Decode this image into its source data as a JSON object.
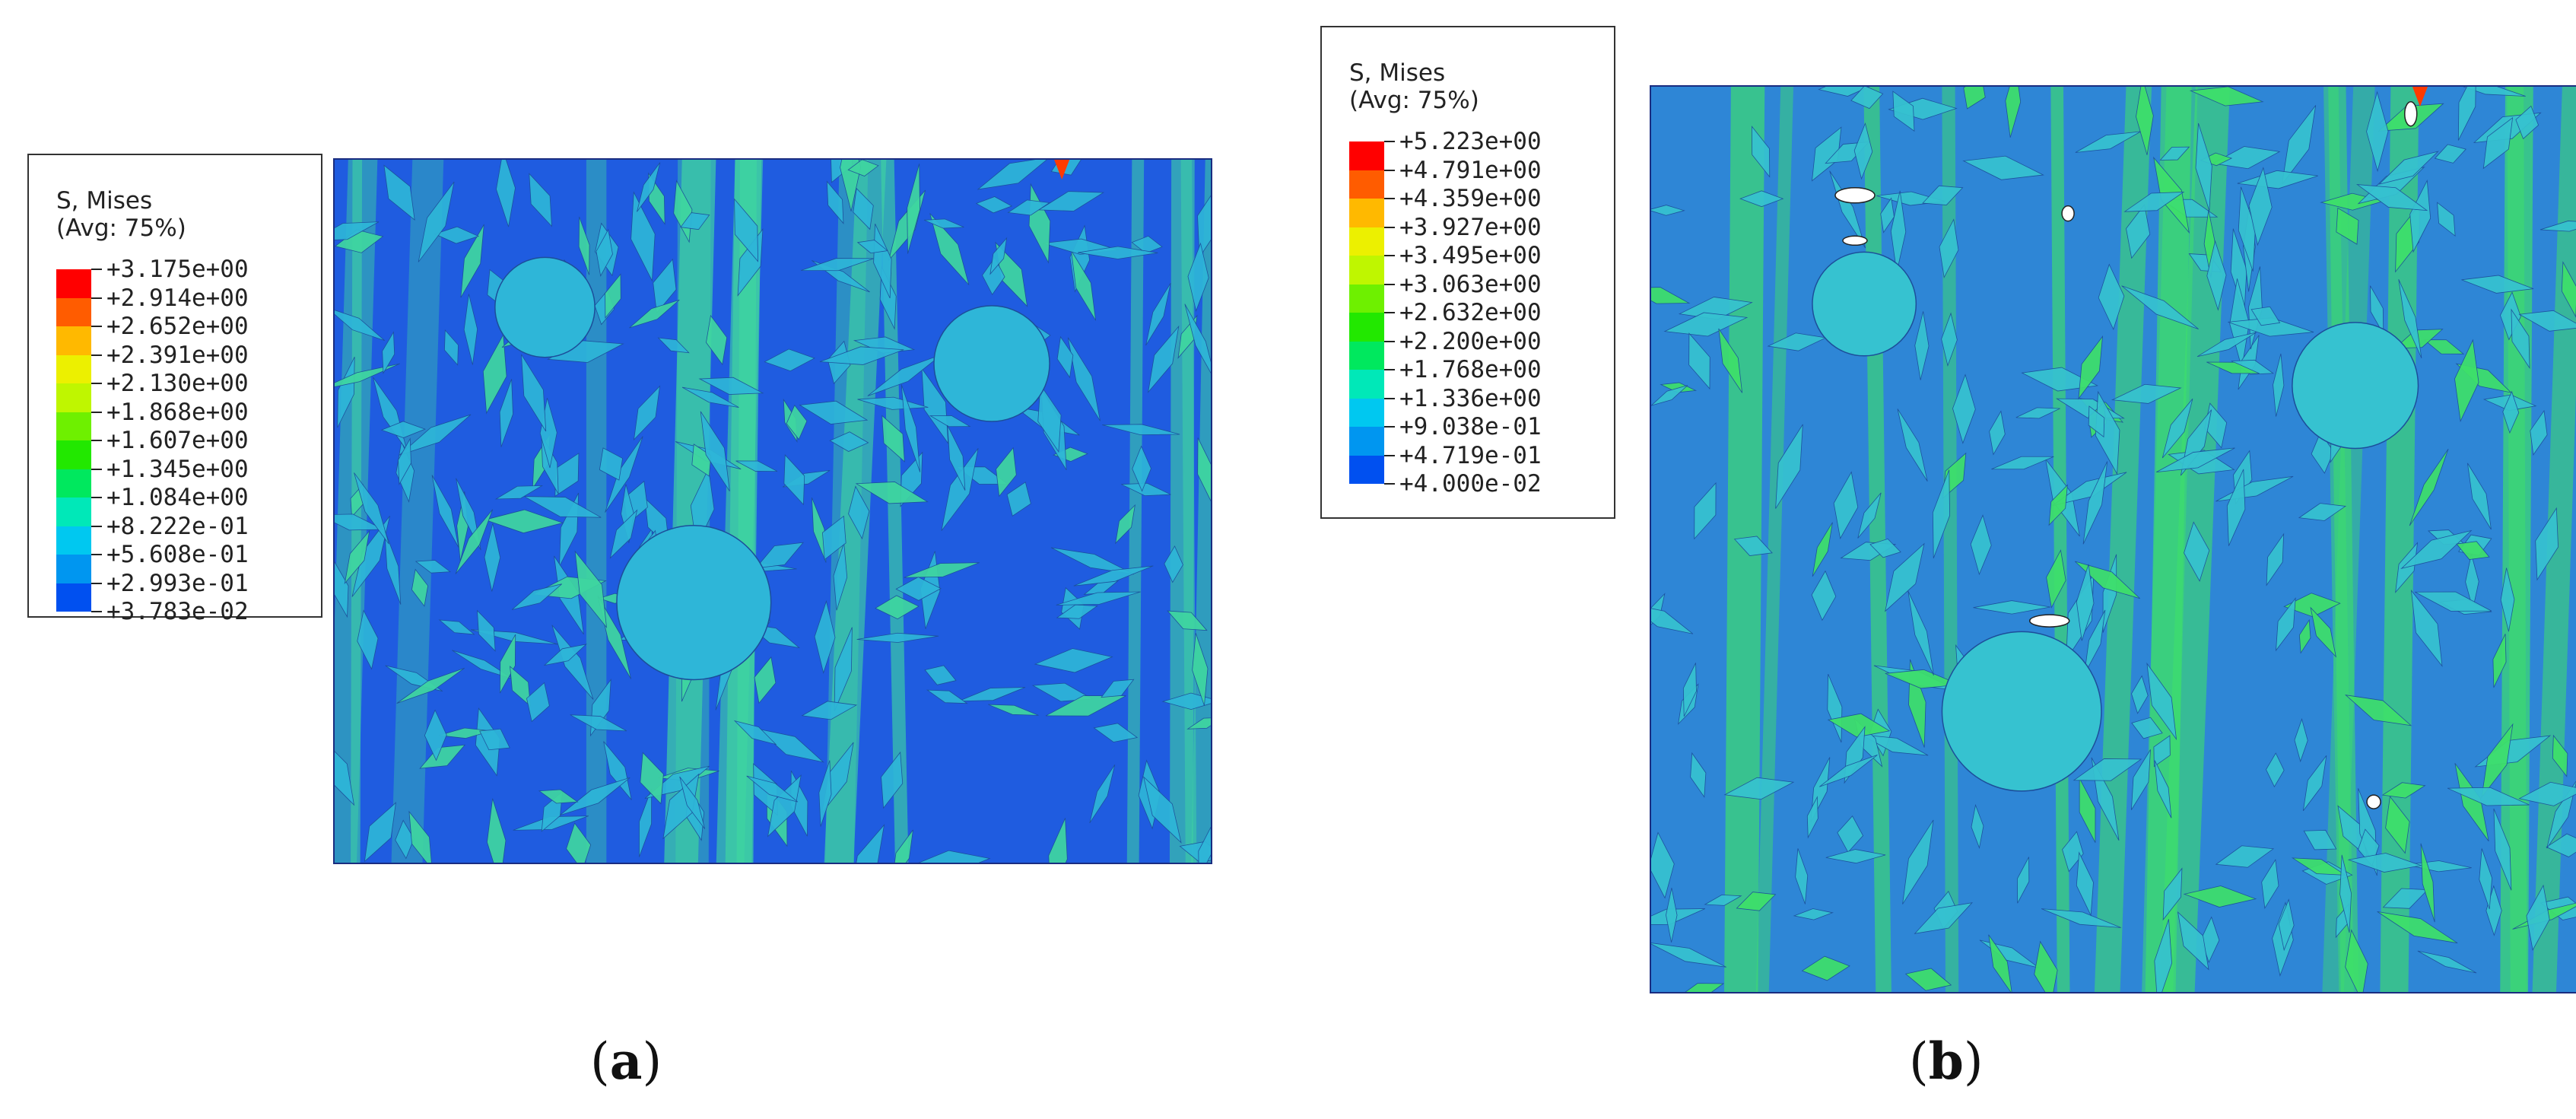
{
  "panels": [
    {
      "caption_open": "(",
      "caption_letter": "a",
      "caption_close": ")",
      "legend": {
        "title": "S, Mises",
        "subtitle": "(Avg: 75%)",
        "ticks": [
          "+3.175e+00",
          "+2.914e+00",
          "+2.652e+00",
          "+2.391e+00",
          "+2.130e+00",
          "+1.868e+00",
          "+1.607e+00",
          "+1.345e+00",
          "+1.084e+00",
          "+8.222e-01",
          "+5.608e-01",
          "+2.993e-01",
          "+3.783e-02"
        ]
      },
      "colors": {
        "background": "#1f5ce0",
        "particle": "#2eb6d8",
        "band": "#3fd6a0"
      }
    },
    {
      "caption_open": "(",
      "caption_letter": "b",
      "caption_close": ")",
      "legend": {
        "title": "S, Mises",
        "subtitle": "(Avg: 75%)",
        "ticks": [
          "+5.223e+00",
          "+4.791e+00",
          "+4.359e+00",
          "+3.927e+00",
          "+3.495e+00",
          "+3.063e+00",
          "+2.632e+00",
          "+2.200e+00",
          "+1.768e+00",
          "+1.336e+00",
          "+9.038e-01",
          "+4.719e-01",
          "+4.000e-02"
        ]
      },
      "colors": {
        "background": "#2e86d6",
        "particle": "#36c2d0",
        "band": "#3ee06a"
      }
    }
  ],
  "contour_colors": [
    "#ff0000",
    "#ff5c00",
    "#ffb900",
    "#ecf000",
    "#bff600",
    "#6ef000",
    "#22e800",
    "#00e85e",
    "#00e8b8",
    "#00c8f0",
    "#0096f0",
    "#0050f0",
    "#0000ff"
  ],
  "hot_spot_color": "#ff3a00"
}
